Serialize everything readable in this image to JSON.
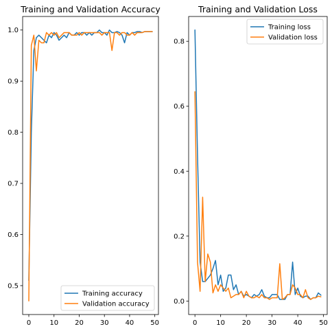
{
  "colors": {
    "training": "#1f77b4",
    "validation": "#ff7f0e"
  },
  "chart_data": [
    {
      "type": "line",
      "title": "Training and Validation Accuracy",
      "xlabel": "",
      "ylabel": "",
      "xlim": [
        -2.45,
        51.45
      ],
      "ylim": [
        0.4435,
        1.0265
      ],
      "xticks": [
        0,
        10,
        20,
        30,
        40,
        50
      ],
      "yticks": [
        0.5,
        0.6,
        0.7,
        0.8,
        0.9,
        1.0
      ],
      "ytick_labels": [
        "0.5",
        "0.6",
        "0.7",
        "0.8",
        "0.9",
        "1.0"
      ],
      "legend_position": "lower right",
      "grid": false,
      "x": [
        0,
        1,
        2,
        3,
        4,
        5,
        6,
        7,
        8,
        9,
        10,
        11,
        12,
        13,
        14,
        15,
        16,
        17,
        18,
        19,
        20,
        21,
        22,
        23,
        24,
        25,
        26,
        27,
        28,
        29,
        30,
        31,
        32,
        33,
        34,
        35,
        36,
        37,
        38,
        39,
        40,
        41,
        42,
        43,
        44,
        45,
        46,
        47,
        48,
        49
      ],
      "series": [
        {
          "name": "Training accuracy",
          "color_key": "training",
          "values": [
            0.51,
            0.8,
            0.96,
            0.985,
            0.99,
            0.985,
            0.98,
            0.975,
            0.99,
            0.985,
            0.995,
            0.99,
            0.98,
            0.985,
            0.99,
            0.985,
            0.995,
            0.99,
            0.99,
            0.995,
            0.99,
            0.995,
            0.995,
            0.99,
            0.995,
            0.99,
            0.995,
            0.995,
            1.0,
            0.995,
            0.995,
            0.99,
            1.0,
            0.995,
            0.995,
            0.997,
            0.995,
            0.99,
            0.975,
            0.995,
            0.99,
            0.995,
            0.995,
            0.997,
            0.997,
            0.995,
            0.997,
            0.997,
            0.997,
            0.997
          ]
        },
        {
          "name": "Validation accuracy",
          "color_key": "validation",
          "values": [
            0.47,
            0.97,
            0.99,
            0.92,
            0.98,
            0.975,
            0.975,
            0.995,
            0.99,
            0.995,
            0.99,
            0.995,
            0.985,
            0.99,
            0.995,
            0.995,
            0.995,
            0.99,
            0.99,
            0.99,
            0.995,
            0.99,
            0.995,
            0.995,
            0.995,
            0.995,
            0.995,
            0.995,
            0.995,
            0.99,
            0.995,
            0.995,
            0.995,
            0.96,
            0.995,
            0.995,
            0.99,
            0.995,
            0.995,
            0.99,
            0.99,
            0.995,
            0.99,
            0.995,
            0.995,
            0.995,
            0.997,
            0.997,
            0.997,
            0.997
          ]
        }
      ]
    },
    {
      "type": "line",
      "title": "Training and Validation Loss",
      "xlabel": "",
      "ylabel": "",
      "xlim": [
        -2.45,
        51.45
      ],
      "ylim": [
        -0.0415,
        0.8765
      ],
      "xticks": [
        0,
        10,
        20,
        30,
        40,
        50
      ],
      "yticks": [
        0.0,
        0.2,
        0.4,
        0.6,
        0.8
      ],
      "ytick_labels": [
        "0.0",
        "0.2",
        "0.4",
        "0.6",
        "0.8"
      ],
      "legend_position": "upper right",
      "grid": false,
      "x": [
        0,
        1,
        2,
        3,
        4,
        5,
        6,
        7,
        8,
        9,
        10,
        11,
        12,
        13,
        14,
        15,
        16,
        17,
        18,
        19,
        20,
        21,
        22,
        23,
        24,
        25,
        26,
        27,
        28,
        29,
        30,
        31,
        32,
        33,
        34,
        35,
        36,
        37,
        38,
        39,
        40,
        41,
        42,
        43,
        44,
        45,
        46,
        47,
        48,
        49
      ],
      "series": [
        {
          "name": "Training loss",
          "color_key": "training",
          "values": [
            0.835,
            0.45,
            0.12,
            0.06,
            0.06,
            0.07,
            0.08,
            0.1,
            0.125,
            0.05,
            0.08,
            0.03,
            0.04,
            0.08,
            0.08,
            0.035,
            0.05,
            0.02,
            0.03,
            0.015,
            0.02,
            0.015,
            0.01,
            0.02,
            0.015,
            0.02,
            0.035,
            0.015,
            0.01,
            0.01,
            0.02,
            0.02,
            0.02,
            0.005,
            0.005,
            0.005,
            0.02,
            0.02,
            0.12,
            0.02,
            0.04,
            0.015,
            0.01,
            0.015,
            0.015,
            0.005,
            0.01,
            0.01,
            0.025,
            0.018
          ]
        },
        {
          "name": "Validation loss",
          "color_key": "validation",
          "values": [
            0.645,
            0.12,
            0.03,
            0.32,
            0.06,
            0.145,
            0.12,
            0.025,
            0.05,
            0.03,
            0.05,
            0.04,
            0.03,
            0.04,
            0.01,
            0.015,
            0.02,
            0.02,
            0.03,
            0.01,
            0.03,
            0.015,
            0.01,
            0.01,
            0.015,
            0.01,
            0.02,
            0.01,
            0.01,
            0.005,
            0.01,
            0.01,
            0.01,
            0.115,
            0.005,
            0.01,
            0.02,
            0.02,
            0.05,
            0.04,
            0.02,
            0.02,
            0.01,
            0.035,
            0.01,
            0.005,
            0.01,
            0.01,
            0.015,
            0.013
          ]
        }
      ]
    }
  ]
}
